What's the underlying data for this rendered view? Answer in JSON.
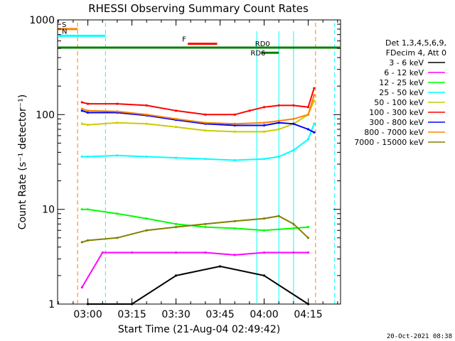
{
  "chart_data": {
    "type": "line",
    "title": "RHESSI Observing Summary Count Rates",
    "xlabel": "Start Time (21-Aug-04 02:49:42)",
    "ylabel": "Count Rate (s⁻¹ detector⁻¹)",
    "x_unit": "UT time",
    "xlim": [
      "02:49:42",
      "04:26:00"
    ],
    "ylim": [
      1,
      1000
    ],
    "y_scale": "log",
    "x_ticks": [
      "03:00",
      "03:15",
      "03:30",
      "03:45",
      "04:00",
      "04:15"
    ],
    "y_ticks": [
      "1",
      "10",
      "100",
      "1000"
    ],
    "legend_position": "right",
    "legend_header": [
      "Det 1,3,4,5,6,9,",
      "FDecim 4, Att 0"
    ],
    "series": [
      {
        "name": "3 - 6 keV",
        "color": "#000000",
        "x": [
          "03:00",
          "03:15",
          "03:30",
          "03:45",
          "04:00",
          "04:15"
        ],
        "values": [
          1,
          1,
          2,
          2.5,
          2,
          1
        ]
      },
      {
        "name": "6 - 12 keV",
        "color": "#ff00ff",
        "x": [
          "02:58",
          "03:05",
          "03:15",
          "03:30",
          "03:40",
          "03:50",
          "04:00",
          "04:10",
          "04:15"
        ],
        "values": [
          1.5,
          3.5,
          3.5,
          3.5,
          3.5,
          3.3,
          3.5,
          3.5,
          3.5
        ]
      },
      {
        "name": "12 - 25 keV",
        "color": "#00ff00",
        "x": [
          "02:58",
          "03:00",
          "03:10",
          "03:20",
          "03:30",
          "03:40",
          "03:50",
          "04:00",
          "04:10",
          "04:15"
        ],
        "values": [
          10,
          10,
          9,
          8,
          7,
          6.5,
          6.3,
          6,
          6.3,
          6.5
        ]
      },
      {
        "name": "25 - 50 keV",
        "color": "#00ffff",
        "x": [
          "02:58",
          "03:00",
          "03:10",
          "03:20",
          "03:30",
          "03:40",
          "03:50",
          "04:00",
          "04:05",
          "04:10",
          "04:15",
          "04:17"
        ],
        "values": [
          36,
          36,
          37,
          36,
          35,
          34,
          33,
          34,
          36,
          42,
          55,
          80
        ]
      },
      {
        "name": "50 - 100 keV",
        "color": "#cccc00",
        "x": [
          "02:58",
          "03:00",
          "03:10",
          "03:20",
          "03:30",
          "03:40",
          "03:50",
          "04:00",
          "04:05",
          "04:10",
          "04:15",
          "04:17"
        ],
        "values": [
          80,
          78,
          82,
          80,
          74,
          68,
          66,
          66,
          70,
          80,
          100,
          140
        ]
      },
      {
        "name": "100 - 300 keV",
        "color": "#ff0000",
        "x": [
          "02:58",
          "03:00",
          "03:10",
          "03:20",
          "03:30",
          "03:40",
          "03:50",
          "03:55",
          "04:00",
          "04:05",
          "04:10",
          "04:15",
          "04:17"
        ],
        "values": [
          135,
          130,
          130,
          125,
          110,
          100,
          100,
          110,
          120,
          125,
          125,
          120,
          190
        ]
      },
      {
        "name": "300 - 800 keV",
        "color": "#0000ff",
        "x": [
          "02:58",
          "03:00",
          "03:10",
          "03:20",
          "03:30",
          "03:40",
          "03:50",
          "04:00",
          "04:05",
          "04:10",
          "04:15",
          "04:17"
        ],
        "values": [
          110,
          105,
          105,
          98,
          88,
          80,
          77,
          77,
          82,
          80,
          70,
          65
        ]
      },
      {
        "name": "800 - 7000 keV",
        "color": "#ff8000",
        "x": [
          "02:58",
          "03:00",
          "03:10",
          "03:20",
          "03:30",
          "03:40",
          "03:50",
          "04:00",
          "04:05",
          "04:10",
          "04:15",
          "04:17"
        ],
        "values": [
          115,
          110,
          108,
          100,
          90,
          82,
          80,
          82,
          86,
          90,
          100,
          160
        ]
      },
      {
        "name": "7000 - 15000 keV",
        "color": "#808000",
        "x": [
          "02:58",
          "03:00",
          "03:10",
          "03:20",
          "03:30",
          "03:40",
          "03:50",
          "04:00",
          "04:05",
          "04:10",
          "04:15"
        ],
        "values": [
          4.5,
          4.7,
          5,
          6,
          6.5,
          7,
          7.5,
          8,
          8.5,
          7,
          5
        ]
      }
    ],
    "annotations": [
      {
        "label": "S",
        "color": "#ff8000",
        "x_start": "02:49:42",
        "x_end": "02:56:30",
        "y": 800
      },
      {
        "label": "N",
        "color": "#00ffff",
        "x_start": "02:49:42",
        "x_end": "03:06:00",
        "y": 680
      },
      {
        "label": "F",
        "color": "#ff0000",
        "x_start": "03:34:00",
        "x_end": "03:44:00",
        "y": 560
      },
      {
        "label": "RD6",
        "color": "#008000",
        "x_start": "03:59:00",
        "x_end": "04:05:00",
        "y": 450
      },
      {
        "label": "RD0",
        "color": "#008000",
        "x_start": "02:49:42",
        "x_end": "04:26:00",
        "y": 510
      }
    ]
  },
  "timestamp": "20-Oct-2021 08:38"
}
